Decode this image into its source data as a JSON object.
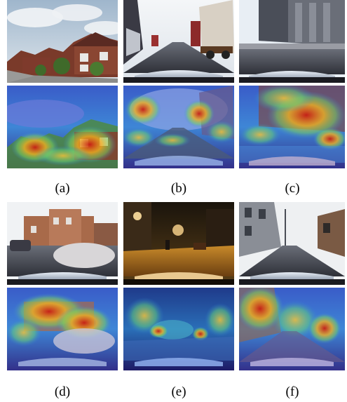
{
  "figure": {
    "columns": [
      {
        "id": "a",
        "caption": "(a)",
        "top_scene": "suburban street with brick houses",
        "bottom_scene": "attention heatmap overlay"
      },
      {
        "id": "b",
        "caption": "(b)",
        "top_scene": "urban street with parked truck",
        "bottom_scene": "attention heatmap overlay"
      },
      {
        "id": "c",
        "caption": "(c)",
        "top_scene": "street with modern building",
        "bottom_scene": "attention heatmap overlay"
      },
      {
        "id": "d",
        "caption": "(d)",
        "top_scene": "roundabout with brick building",
        "bottom_scene": "attention heatmap overlay"
      },
      {
        "id": "e",
        "caption": "(e)",
        "top_scene": "night street scene",
        "bottom_scene": "attention heatmap overlay"
      },
      {
        "id": "f",
        "caption": "(f)",
        "top_scene": "narrow street with buildings",
        "bottom_scene": "attention heatmap overlay"
      }
    ]
  },
  "colors": {
    "heat_hot": "#d42a1a",
    "heat_warm": "#f4c430",
    "heat_mid": "#5fd068",
    "heat_cool": "#2c6fd6",
    "heat_cold": "#3a2a8c"
  }
}
